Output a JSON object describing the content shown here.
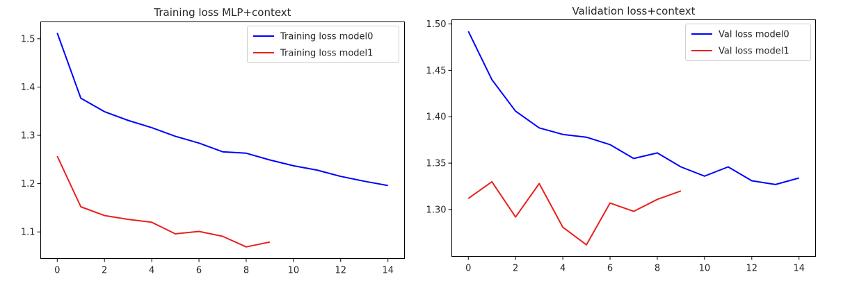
{
  "chart_data": [
    {
      "type": "line",
      "title": "Training loss MLP+context",
      "xlabel": "",
      "ylabel": "",
      "xlim": [
        -0.7,
        14.7
      ],
      "ylim": [
        1.045,
        1.535
      ],
      "xticks": [
        0,
        2,
        4,
        6,
        8,
        10,
        12,
        14
      ],
      "yticks": [
        1.1,
        1.2,
        1.3,
        1.4,
        1.5
      ],
      "ytick_decimals": 1,
      "grid": false,
      "legend_position": "top-right",
      "series": [
        {
          "name": "Training loss model0",
          "color": "#0000ff",
          "x": [
            0,
            1,
            2,
            3,
            4,
            5,
            6,
            7,
            8,
            9,
            10,
            11,
            12,
            13,
            14
          ],
          "y": [
            1.512,
            1.377,
            1.349,
            1.331,
            1.316,
            1.298,
            1.284,
            1.266,
            1.263,
            1.249,
            1.237,
            1.228,
            1.215,
            1.205,
            1.196
          ]
        },
        {
          "name": "Training loss model1",
          "color": "#e8211d",
          "x": [
            0,
            1,
            2,
            3,
            4,
            5,
            6,
            7,
            8,
            9
          ],
          "y": [
            1.257,
            1.152,
            1.134,
            1.126,
            1.12,
            1.096,
            1.101,
            1.091,
            1.069,
            1.079
          ]
        }
      ]
    },
    {
      "type": "line",
      "title": "Validation loss+context",
      "xlabel": "",
      "ylabel": "",
      "xlim": [
        -0.7,
        14.7
      ],
      "ylim": [
        1.2495,
        1.5045
      ],
      "xticks": [
        0,
        2,
        4,
        6,
        8,
        10,
        12,
        14
      ],
      "yticks": [
        1.3,
        1.35,
        1.4,
        1.45,
        1.5
      ],
      "ytick_decimals": 2,
      "grid": false,
      "legend_position": "top-right",
      "series": [
        {
          "name": "Val loss model0",
          "color": "#0000ff",
          "x": [
            0,
            1,
            2,
            3,
            4,
            5,
            6,
            7,
            8,
            9,
            10,
            11,
            12,
            13,
            14
          ],
          "y": [
            1.492,
            1.44,
            1.406,
            1.388,
            1.381,
            1.378,
            1.37,
            1.355,
            1.361,
            1.346,
            1.336,
            1.346,
            1.331,
            1.327,
            1.334
          ]
        },
        {
          "name": "Val loss model1",
          "color": "#e8211d",
          "x": [
            0,
            1,
            2,
            3,
            4,
            5,
            6,
            7,
            8,
            9
          ],
          "y": [
            1.312,
            1.33,
            1.292,
            1.328,
            1.281,
            1.262,
            1.307,
            1.298,
            1.311,
            1.32
          ]
        }
      ]
    }
  ]
}
